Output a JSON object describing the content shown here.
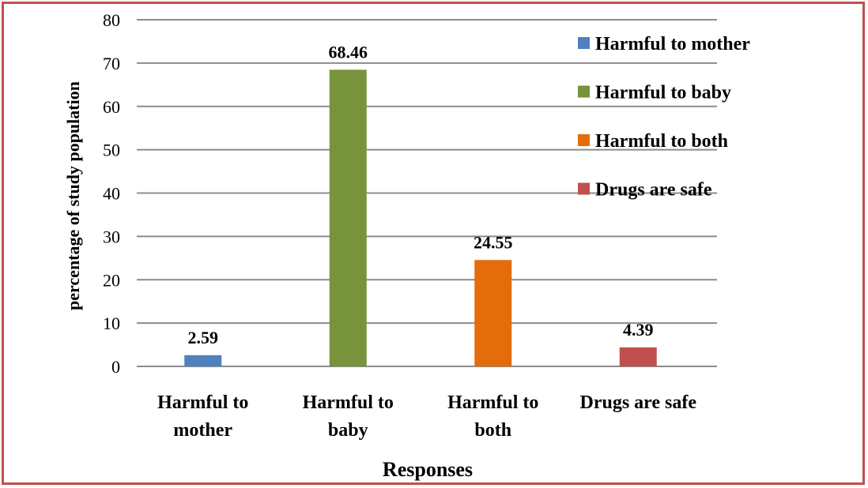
{
  "chart_data": {
    "type": "bar",
    "title": "",
    "xlabel": "Responses",
    "ylabel": "percentage of study population",
    "ylim": [
      0,
      80
    ],
    "yticks": [
      0,
      10,
      20,
      30,
      40,
      50,
      60,
      70,
      80
    ],
    "grid": true,
    "legend_position": "right",
    "categories": [
      [
        "Harmful to",
        "mother"
      ],
      [
        "Harmful to",
        "baby"
      ],
      [
        "Harmful to",
        "both"
      ],
      [
        "Drugs are safe"
      ]
    ],
    "values": [
      2.59,
      68.46,
      24.55,
      4.39
    ],
    "value_labels": [
      "2.59",
      "68.46",
      "24.55",
      "4.39"
    ],
    "colors": [
      "#4f81bd",
      "#77933c",
      "#e46c0a",
      "#c0504d"
    ],
    "legend": [
      "Harmful to mother",
      " Harmful to baby",
      "Harmful to both",
      "Drugs are safe"
    ]
  },
  "frame_color": "#c0504d"
}
